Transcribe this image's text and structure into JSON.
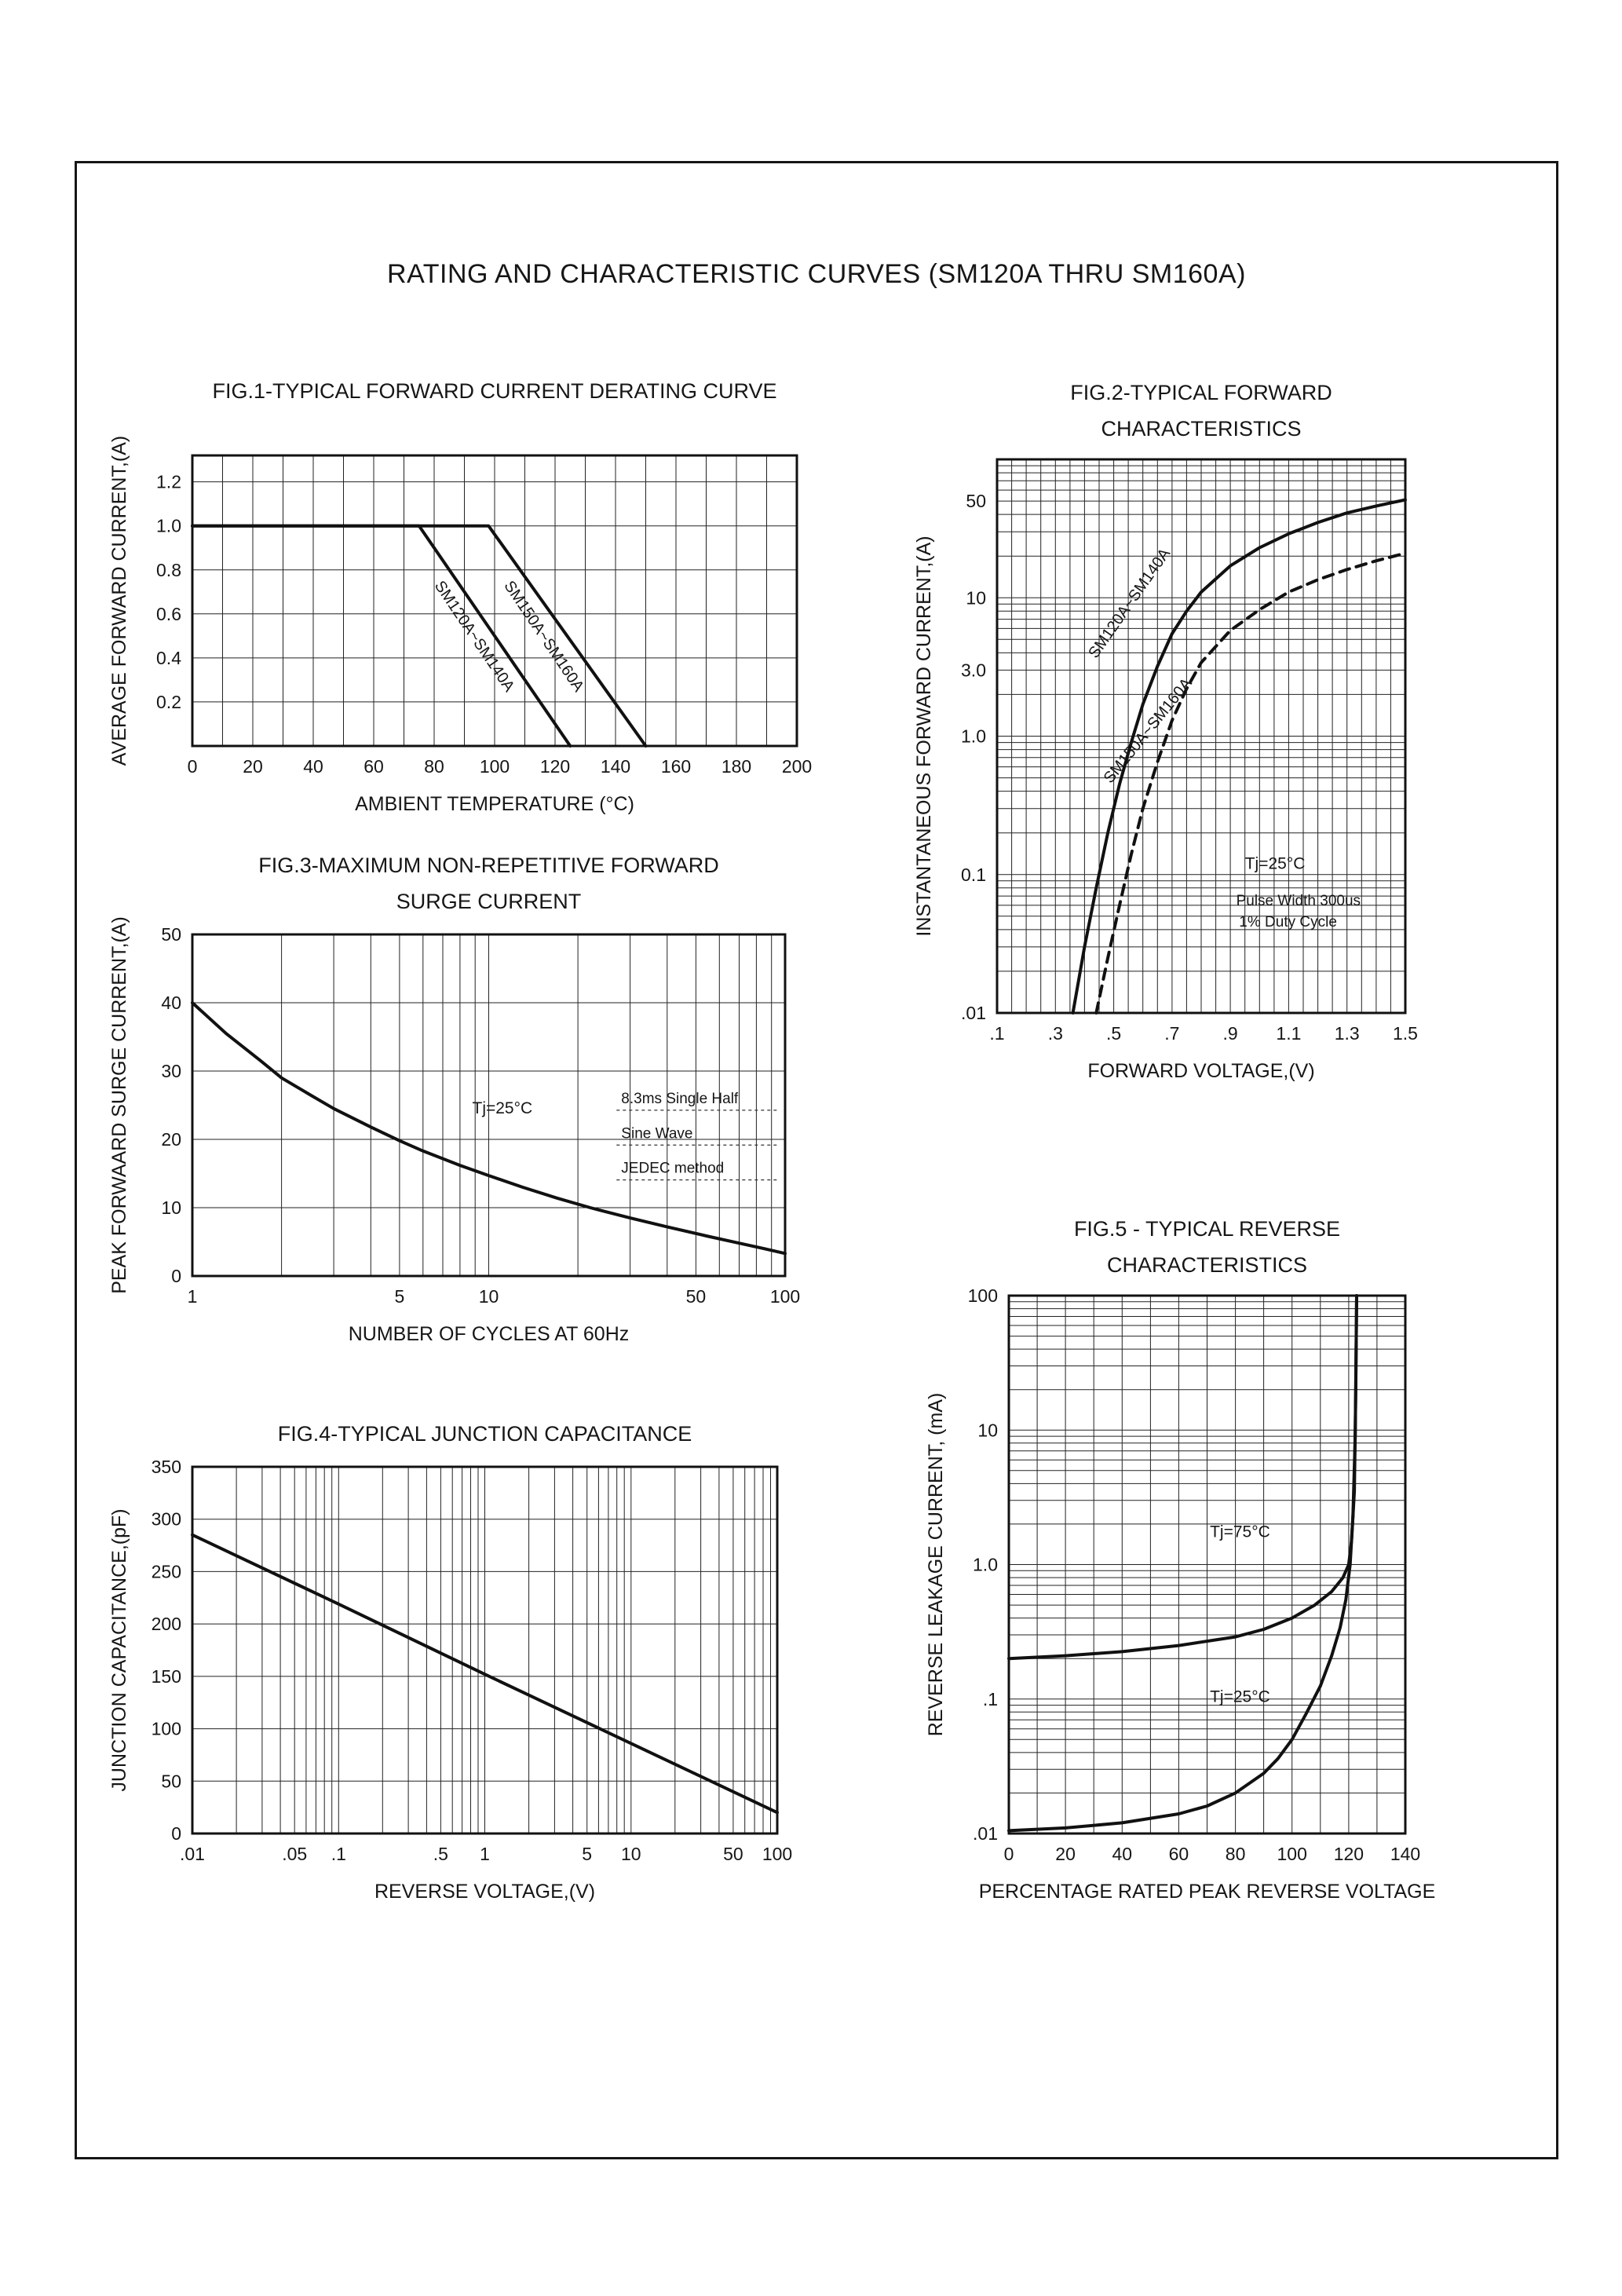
{
  "page": {
    "title": "RATING AND CHARACTERISTIC CURVES (SM120A THRU SM160A)"
  },
  "chart_data": [
    {
      "id": "fig1",
      "type": "line",
      "title": "FIG.1-TYPICAL FORWARD CURRENT DERATING CURVE",
      "xlabel": "AMBIENT TEMPERATURE (°C)",
      "ylabel": "AVERAGE FORWARD CURRENT,(A)",
      "x": {
        "scale": "linear",
        "lim": [
          0,
          200
        ],
        "grid": 10,
        "ticks": [
          {
            "v": 0,
            "l": "0"
          },
          {
            "v": 20,
            "l": "20"
          },
          {
            "v": 40,
            "l": "40"
          },
          {
            "v": 60,
            "l": "60"
          },
          {
            "v": 80,
            "l": "80"
          },
          {
            "v": 100,
            "l": "100"
          },
          {
            "v": 120,
            "l": "120"
          },
          {
            "v": 140,
            "l": "140"
          },
          {
            "v": 160,
            "l": "160"
          },
          {
            "v": 180,
            "l": "180"
          },
          {
            "v": 200,
            "l": "200"
          }
        ]
      },
      "y": {
        "scale": "linear",
        "lim": [
          0,
          1.32
        ],
        "grid": 0.2,
        "ticks": [
          {
            "v": 0.2,
            "l": "0.2"
          },
          {
            "v": 0.4,
            "l": "0.4"
          },
          {
            "v": 0.6,
            "l": "0.6"
          },
          {
            "v": 0.8,
            "l": "0.8"
          },
          {
            "v": 1.0,
            "l": "1.0"
          },
          {
            "v": 1.2,
            "l": "1.2"
          }
        ]
      },
      "series": [
        {
          "name": "SM120A~SM140A",
          "points": [
            [
              0,
              1
            ],
            [
              75,
              1
            ],
            [
              125,
              0
            ]
          ]
        },
        {
          "name": "SM150A~SM160A",
          "points": [
            [
              0,
              1
            ],
            [
              98,
              1
            ],
            [
              150,
              0
            ]
          ]
        }
      ],
      "annotations": [
        {
          "text": "SM120A~SM140A",
          "x": 80,
          "y": 0.73,
          "rotate": 56,
          "size": 20
        },
        {
          "text": "SM150A~SM160A",
          "x": 103,
          "y": 0.73,
          "rotate": 56,
          "size": 20
        }
      ]
    },
    {
      "id": "fig2",
      "type": "line",
      "title": "FIG.2-TYPICAL FORWARD",
      "title2": "CHARACTERISTICS",
      "xlabel": "FORWARD VOLTAGE,(V)",
      "ylabel": "INSTANTANEOUS FORWARD CURRENT,(A)",
      "x": {
        "scale": "linear",
        "lim": [
          0.1,
          1.5
        ],
        "grid": 0.05,
        "ticks": [
          {
            "v": 0.1,
            "l": ".1"
          },
          {
            "v": 0.3,
            "l": ".3"
          },
          {
            "v": 0.5,
            "l": ".5"
          },
          {
            "v": 0.7,
            "l": ".7"
          },
          {
            "v": 0.9,
            "l": ".9"
          },
          {
            "v": 1.1,
            "l": "1.1"
          },
          {
            "v": 1.3,
            "l": "1.3"
          },
          {
            "v": 1.5,
            "l": "1.5"
          }
        ]
      },
      "y": {
        "scale": "log",
        "lim": [
          0.01,
          100
        ],
        "ticks": [
          {
            "v": 50,
            "l": "50"
          },
          {
            "v": 10,
            "l": "10"
          },
          {
            "v": 3,
            "l": "3.0"
          },
          {
            "v": 1,
            "l": "1.0"
          },
          {
            "v": 0.1,
            "l": "0.1"
          },
          {
            "v": 0.01,
            "l": ".01"
          }
        ]
      },
      "series": [
        {
          "name": "SM120A~SM140A",
          "points": [
            [
              0.36,
              0.01
            ],
            [
              0.4,
              0.03
            ],
            [
              0.44,
              0.08
            ],
            [
              0.48,
              0.2
            ],
            [
              0.52,
              0.45
            ],
            [
              0.56,
              0.9
            ],
            [
              0.6,
              1.7
            ],
            [
              0.65,
              3.2
            ],
            [
              0.7,
              5.5
            ],
            [
              0.75,
              8
            ],
            [
              0.8,
              11
            ],
            [
              0.9,
              17
            ],
            [
              1.0,
              23
            ],
            [
              1.1,
              29
            ],
            [
              1.2,
              35
            ],
            [
              1.3,
              41
            ],
            [
              1.4,
              46
            ],
            [
              1.5,
              51
            ]
          ]
        },
        {
          "name": "SM150A~SM160A",
          "dash": "13 9",
          "points": [
            [
              0.44,
              0.01
            ],
            [
              0.48,
              0.025
            ],
            [
              0.52,
              0.06
            ],
            [
              0.56,
              0.14
            ],
            [
              0.6,
              0.3
            ],
            [
              0.65,
              0.65
            ],
            [
              0.7,
              1.3
            ],
            [
              0.75,
              2.2
            ],
            [
              0.8,
              3.4
            ],
            [
              0.9,
              5.8
            ],
            [
              1.0,
              8.2
            ],
            [
              1.1,
              11
            ],
            [
              1.2,
              13.5
            ],
            [
              1.3,
              16
            ],
            [
              1.4,
              18.5
            ],
            [
              1.5,
              21
            ]
          ]
        }
      ],
      "annotations": [
        {
          "text": "SM120A~SM140A",
          "x": 0.44,
          "y": 3.6,
          "rotate": -55,
          "size": 20
        },
        {
          "text": "SM150A~SM160A",
          "x": 0.49,
          "y": 0.45,
          "rotate": -51,
          "size": 20
        },
        {
          "text": "Tj=25°C",
          "x": 0.95,
          "y": 0.11,
          "size": 21
        },
        {
          "text": "Pulse Width 300us",
          "x": 0.92,
          "y": 0.06,
          "size": 19
        },
        {
          "text": "1% Duty Cycle",
          "x": 0.93,
          "y": 0.042,
          "size": 19
        }
      ]
    },
    {
      "id": "fig3",
      "type": "line",
      "title": "FIG.3-MAXIMUM NON-REPETITIVE FORWARD",
      "title2": "SURGE CURRENT",
      "xlabel": "NUMBER OF CYCLES AT 60Hz",
      "ylabel": "PEAK FORWAARD SURGE CURRENT,(A)",
      "x": {
        "scale": "log",
        "lim": [
          1,
          100
        ],
        "ticks": [
          {
            "v": 1,
            "l": "1"
          },
          {
            "v": 5,
            "l": "5"
          },
          {
            "v": 10,
            "l": "10"
          },
          {
            "v": 50,
            "l": "50"
          },
          {
            "v": 100,
            "l": "100"
          }
        ]
      },
      "y": {
        "scale": "linear",
        "lim": [
          0,
          50
        ],
        "grid": 10,
        "ticks": [
          {
            "v": 0,
            "l": "0"
          },
          {
            "v": 10,
            "l": "10"
          },
          {
            "v": 20,
            "l": "20"
          },
          {
            "v": 30,
            "l": "30"
          },
          {
            "v": 40,
            "l": "40"
          },
          {
            "v": 50,
            "l": "50"
          }
        ]
      },
      "series": [
        {
          "name": "surge-current",
          "points": [
            [
              1,
              40
            ],
            [
              1.3,
              35.5
            ],
            [
              1.7,
              31.5
            ],
            [
              2,
              29
            ],
            [
              2.5,
              26.5
            ],
            [
              3,
              24.5
            ],
            [
              4,
              21.8
            ],
            [
              5,
              19.8
            ],
            [
              6,
              18.3
            ],
            [
              8,
              16.2
            ],
            [
              10,
              14.7
            ],
            [
              13,
              13
            ],
            [
              17,
              11.4
            ],
            [
              22,
              10
            ],
            [
              30,
              8.5
            ],
            [
              40,
              7.2
            ],
            [
              55,
              5.8
            ],
            [
              70,
              4.8
            ],
            [
              85,
              4
            ],
            [
              100,
              3.3
            ]
          ]
        }
      ],
      "annotations": [
        {
          "text": "Tj=25°C",
          "x": 8.8,
          "y": 23.8,
          "size": 21
        },
        {
          "text": "8.3ms Single Half",
          "x": 28,
          "y": 25.3,
          "size": 19,
          "rule": 200
        },
        {
          "text": "Sine Wave",
          "x": 28,
          "y": 20.2,
          "size": 19,
          "rule": 200
        },
        {
          "text": "JEDEC method",
          "x": 28,
          "y": 15.1,
          "size": 19,
          "rule": 200
        }
      ]
    },
    {
      "id": "fig4",
      "type": "line",
      "title": "FIG.4-TYPICAL JUNCTION CAPACITANCE",
      "xlabel": "REVERSE VOLTAGE,(V)",
      "ylabel": "JUNCTION CAPACITANCE,(pF)",
      "x": {
        "scale": "log",
        "lim": [
          0.01,
          100
        ],
        "ticks": [
          {
            "v": 0.01,
            "l": ".01"
          },
          {
            "v": 0.05,
            "l": ".05"
          },
          {
            "v": 0.1,
            "l": ".1"
          },
          {
            "v": 0.5,
            "l": ".5"
          },
          {
            "v": 1,
            "l": "1"
          },
          {
            "v": 5,
            "l": "5"
          },
          {
            "v": 10,
            "l": "10"
          },
          {
            "v": 50,
            "l": "50"
          },
          {
            "v": 100,
            "l": "100"
          }
        ]
      },
      "y": {
        "scale": "linear",
        "lim": [
          0,
          350
        ],
        "grid": 50,
        "ticks": [
          {
            "v": 0,
            "l": "0"
          },
          {
            "v": 50,
            "l": "50"
          },
          {
            "v": 100,
            "l": "100"
          },
          {
            "v": 150,
            "l": "150"
          },
          {
            "v": 200,
            "l": "200"
          },
          {
            "v": 250,
            "l": "250"
          },
          {
            "v": 300,
            "l": "300"
          },
          {
            "v": 350,
            "l": "350"
          }
        ]
      },
      "series": [
        {
          "name": "junction-capacitance",
          "points": [
            [
              0.01,
              285
            ],
            [
              0.1,
              219
            ],
            [
              1,
              152
            ],
            [
              10,
              86
            ],
            [
              100,
              20
            ]
          ]
        }
      ],
      "annotations": []
    },
    {
      "id": "fig5",
      "type": "line",
      "title": "FIG.5 - TYPICAL REVERSE",
      "title2": "CHARACTERISTICS",
      "xlabel": "PERCENTAGE RATED PEAK REVERSE VOLTAGE",
      "ylabel": "REVERSE LEAKAGE CURRENT, (mA)",
      "x": {
        "scale": "linear",
        "lim": [
          0,
          140
        ],
        "grid": 10,
        "ticks": [
          {
            "v": 0,
            "l": "0"
          },
          {
            "v": 20,
            "l": "20"
          },
          {
            "v": 40,
            "l": "40"
          },
          {
            "v": 60,
            "l": "60"
          },
          {
            "v": 80,
            "l": "80"
          },
          {
            "v": 100,
            "l": "100"
          },
          {
            "v": 120,
            "l": "120"
          },
          {
            "v": 140,
            "l": "140"
          }
        ]
      },
      "y": {
        "scale": "log",
        "lim": [
          0.01,
          100
        ],
        "ticks": [
          {
            "v": 100,
            "l": "100"
          },
          {
            "v": 10,
            "l": "10"
          },
          {
            "v": 1,
            "l": "1.0"
          },
          {
            "v": 0.1,
            "l": ".1"
          },
          {
            "v": 0.01,
            "l": ".01"
          }
        ]
      },
      "series": [
        {
          "name": "Tj=75°C",
          "points": [
            [
              0,
              0.2
            ],
            [
              20,
              0.21
            ],
            [
              40,
              0.225
            ],
            [
              60,
              0.25
            ],
            [
              80,
              0.29
            ],
            [
              90,
              0.33
            ],
            [
              100,
              0.4
            ],
            [
              108,
              0.5
            ],
            [
              114,
              0.63
            ],
            [
              118,
              0.8
            ],
            [
              120,
              1.0
            ],
            [
              121,
              1.5
            ],
            [
              122,
              3.5
            ],
            [
              122.5,
              20
            ],
            [
              122.8,
              100
            ]
          ]
        },
        {
          "name": "Tj=25°C",
          "points": [
            [
              0,
              0.0105
            ],
            [
              20,
              0.011
            ],
            [
              40,
              0.012
            ],
            [
              60,
              0.014
            ],
            [
              70,
              0.016
            ],
            [
              80,
              0.02
            ],
            [
              90,
              0.028
            ],
            [
              95,
              0.036
            ],
            [
              100,
              0.05
            ],
            [
              105,
              0.078
            ],
            [
              110,
              0.125
            ],
            [
              114,
              0.21
            ],
            [
              117,
              0.34
            ],
            [
              119,
              0.55
            ],
            [
              120.5,
              1.0
            ],
            [
              121.5,
              2.3
            ],
            [
              122.3,
              9
            ],
            [
              122.8,
              100
            ]
          ]
        }
      ],
      "annotations": [
        {
          "text": "Tj=75°C",
          "x": 71,
          "y": 1.6,
          "size": 21
        },
        {
          "text": "Tj=25°C",
          "x": 71,
          "y": 0.095,
          "size": 21
        }
      ]
    }
  ]
}
